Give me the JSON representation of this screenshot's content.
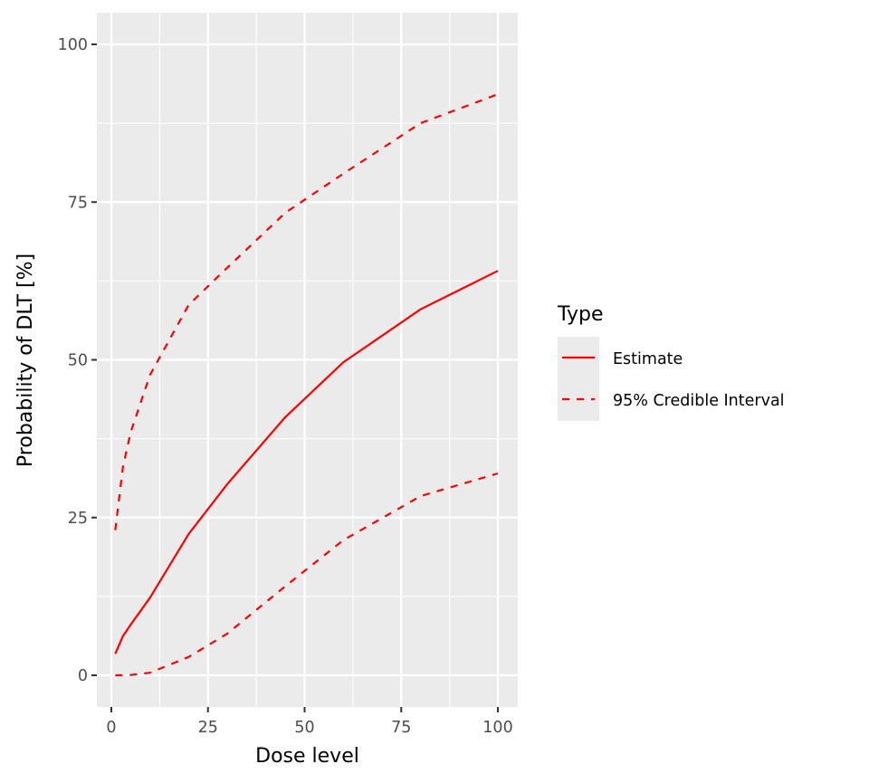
{
  "chart_data": {
    "type": "line",
    "title": "",
    "xlabel": "Dose level",
    "ylabel": "Probability of DLT [%]",
    "xlim": [
      -3,
      105
    ],
    "ylim": [
      -5,
      105
    ],
    "x_ticks": [
      0,
      25,
      50,
      75,
      100
    ],
    "x_tick_labels": [
      "0",
      "25",
      "50",
      "75",
      "100"
    ],
    "y_ticks": [
      0,
      25,
      50,
      75,
      100
    ],
    "y_tick_labels": [
      "0",
      "25",
      "50",
      "75",
      "100"
    ],
    "grid": true,
    "legend_position": "right",
    "legend_title": "Type",
    "x": [
      1,
      3,
      5,
      10,
      20,
      30,
      45,
      60,
      80,
      100
    ],
    "series": [
      {
        "name": "Estimate",
        "linetype": "solid",
        "color": "#ff0000",
        "values": [
          3.4,
          6.2,
          8.0,
          12.3,
          22.4,
          30.3,
          40.9,
          49.6,
          58.0,
          64.1
        ]
      },
      {
        "name": "95% Credible Interval (upper)",
        "legend_name": "95% Credible Interval",
        "linetype": "dashed",
        "color": "#ff0000",
        "values": [
          23.0,
          33.0,
          38.5,
          47.6,
          58.7,
          64.6,
          73.3,
          79.5,
          87.5,
          92.1
        ]
      },
      {
        "name": "95% Credible Interval (lower)",
        "legend_name": "95% Credible Interval",
        "linetype": "dashed",
        "color": "#ff0000",
        "values": [
          0.0,
          0.0,
          0.05,
          0.4,
          2.9,
          6.6,
          14.1,
          21.4,
          28.4,
          32.0
        ]
      }
    ]
  },
  "legend": {
    "title": "Type",
    "items": [
      {
        "label": "Estimate",
        "linetype": "solid"
      },
      {
        "label": "95% Credible Interval",
        "linetype": "dashed"
      }
    ]
  },
  "colors": {
    "panel_background": "#ebebeb",
    "grid_major": "#ffffff",
    "line": "#ff0000",
    "tick_text": "#4d4d4d",
    "tick_mark": "#333333"
  }
}
